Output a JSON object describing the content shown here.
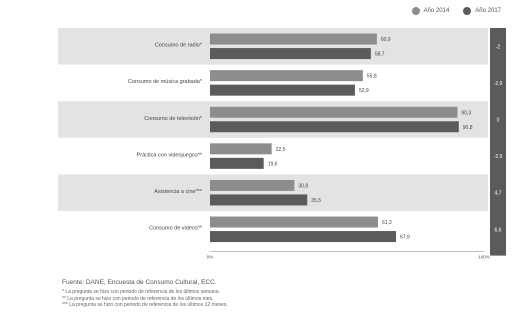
{
  "legend": [
    {
      "label": "Año 2014",
      "color": "#8d8d8d"
    },
    {
      "label": "Año 2017",
      "color": "#5b5b5b"
    }
  ],
  "source": "Fuente: DANE, Encuesta de Consumo Cultural, ECC.",
  "notes": [
    "* La pregunta se hizo con periodo de referencia de los últimos semana.",
    "** La pregunta se hizo con periodo de referencia de los últimos mes.",
    "*** La pregunta se hizo con periodo de referencia de los últimos 12 meses."
  ],
  "chart_data": {
    "type": "bar",
    "orientation": "horizontal",
    "categories": [
      "Consumo de radio*",
      "Consumo de música grabada*",
      "Consumo de televisión*",
      "Práctica con videojuegos**",
      "Asistencia a cine***",
      "Consumo de videos**"
    ],
    "series": [
      {
        "name": "Año 2014",
        "color": "#8d8d8d",
        "values": [
          60.9,
          55.8,
          90.3,
          22.5,
          30.8,
          61.3
        ]
      },
      {
        "name": "Año 2017",
        "color": "#5b5b5b",
        "values": [
          58.7,
          52.9,
          90.8,
          19.6,
          35.5,
          67.9
        ]
      }
    ],
    "data_labels": [
      [
        "60,9",
        "55,8",
        "90,3",
        "22,5",
        "30,8",
        "61,3"
      ],
      [
        "58,7",
        "52,9",
        "90,8",
        "19,6",
        "35,5",
        "67,9"
      ]
    ],
    "diff_labels": [
      "-2",
      "-2,9",
      "0",
      "-2,9",
      "4,7",
      "6,6"
    ],
    "x_tick_labels": [
      "0%",
      "100%"
    ],
    "xlim": [
      0,
      100
    ],
    "band_color": "#e3e3e3",
    "diff_column_color": "#5b5b5b"
  }
}
